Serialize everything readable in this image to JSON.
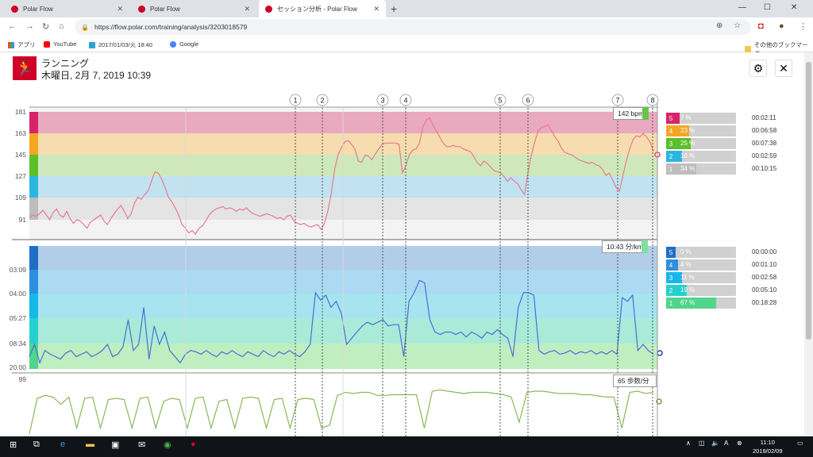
{
  "browser": {
    "tabs": [
      {
        "title": "Polar Flow",
        "active": false
      },
      {
        "title": "Polar Flow",
        "active": false
      },
      {
        "title": "セッション分析 - Polar Flow",
        "active": true
      }
    ],
    "url": "https://flow.polar.com/training/analysis/3203018579",
    "bookmarks": [
      {
        "label": "アプリ",
        "icon": "apps-grid-icon"
      },
      {
        "label": "YouTube",
        "icon": "youtube-icon"
      },
      {
        "label": "2017/01/03/火 18:40",
        "icon": "bookmark-icon"
      },
      {
        "label": "Google",
        "icon": "google-icon"
      }
    ],
    "other_bookmarks": "その他のブックマーク"
  },
  "session": {
    "sport": "ランニング",
    "date": "木曜日, 2月 7, 2019 10:39"
  },
  "chart_data": {
    "type": "line",
    "markers": [
      "1",
      "2",
      "3",
      "4",
      "5",
      "6",
      "7",
      "8"
    ],
    "panels": [
      {
        "name": "heart_rate",
        "y_ticks": [
          "181",
          "163",
          "145",
          "127",
          "109",
          "91"
        ],
        "current_value": "142 bpm",
        "color": "#e87a90",
        "values": [
          93,
          95,
          94,
          96,
          99,
          95,
          91,
          97,
          100,
          95,
          93,
          98,
          92,
          88,
          91,
          90,
          87,
          84,
          89,
          91,
          93,
          95,
          90,
          87,
          92,
          96,
          100,
          103,
          98,
          92,
          96,
          105,
          110,
          108,
          112,
          115,
          123,
          131,
          130,
          125,
          118,
          110,
          106,
          101,
          95,
          87,
          84,
          80,
          82,
          79,
          84,
          86,
          90,
          95,
          98,
          100,
          101,
          102,
          100,
          101,
          100,
          98,
          100,
          99,
          101,
          98,
          96,
          95,
          94,
          95,
          96,
          95,
          94,
          92,
          93,
          91,
          94,
          95,
          90,
          88,
          87,
          88,
          86,
          85,
          86,
          87,
          83,
          88,
          98,
          113,
          133,
          145,
          151,
          156,
          157,
          154,
          150,
          140,
          139,
          145,
          144,
          141,
          146,
          150,
          154,
          155,
          155,
          155,
          155,
          154,
          130,
          136,
          145,
          149,
          150,
          155,
          168,
          174,
          176,
          170,
          165,
          160,
          155,
          152,
          152,
          153,
          152,
          152,
          150,
          149,
          148,
          144,
          139,
          136,
          140,
          138,
          135,
          132,
          131,
          130,
          127,
          123,
          126,
          123,
          121,
          116,
          112,
          130,
          145,
          156,
          165,
          168,
          169,
          170,
          165,
          160,
          156,
          150,
          147,
          146,
          145,
          143,
          141,
          140,
          139,
          138,
          139,
          137,
          136,
          133,
          128,
          130,
          124,
          118,
          115,
          128,
          140,
          150,
          158,
          161,
          160,
          163,
          160,
          156,
          148
        ]
      },
      {
        "name": "pace",
        "y_ticks": [
          "03:09",
          "04:00",
          "05:27",
          "08:34",
          "20:00"
        ],
        "current_value": "10:43 分/km",
        "color": "#4a6fd8",
        "values": [
          0.1,
          0.2,
          0.05,
          0.15,
          0.12,
          0.1,
          0.08,
          0.13,
          0.15,
          0.1,
          0.12,
          0.14,
          0.1,
          0.12,
          0.15,
          0.2,
          0.1,
          0.12,
          0.18,
          0.4,
          0.15,
          0.2,
          0.5,
          0.08,
          0.35,
          0.2,
          0.3,
          0.15,
          0.1,
          0.05,
          0.12,
          0.15,
          0.14,
          0.12,
          0.15,
          0.12,
          0.1,
          0.14,
          0.12,
          0.15,
          0.12,
          0.1,
          0.14,
          0.12,
          0.1,
          0.15,
          0.12,
          0.1,
          0.14,
          0.12,
          0.15,
          0.12,
          0.1,
          0.14,
          0.2,
          0.62,
          0.56,
          0.6,
          0.5,
          0.55,
          0.45,
          0.2,
          0.25,
          0.3,
          0.35,
          0.38,
          0.36,
          0.38,
          0.4,
          0.35,
          0.36,
          0.36,
          0.1,
          0.55,
          0.62,
          0.72,
          0.7,
          0.4,
          0.3,
          0.28,
          0.3,
          0.3,
          0.28,
          0.3,
          0.26,
          0.3,
          0.28,
          0.25,
          0.3,
          0.28,
          0.32,
          0.28,
          0.25,
          0.1,
          0.5,
          0.62,
          0.62,
          0.6,
          0.15,
          0.12,
          0.14,
          0.15,
          0.12,
          0.13,
          0.15,
          0.12,
          0.14,
          0.13,
          0.15,
          0.12,
          0.14,
          0.12,
          0.15,
          0.12,
          0.58,
          0.55,
          0.6,
          0.15,
          0.2,
          0.15,
          0.12
        ]
      },
      {
        "name": "cadence",
        "y_ticks": [
          "99"
        ],
        "current_value": "65 歩数/分",
        "color": "#8ab85a",
        "values": [
          0,
          0.6,
          0.65,
          0.62,
          0.5,
          0.62,
          0.1,
          0.6,
          0.62,
          0.1,
          0.58,
          0.6,
          0.58,
          0.1,
          0.6,
          0.62,
          0.1,
          0.55,
          0.6,
          0.58,
          0.1,
          0.6,
          0.62,
          0.1,
          0.55,
          0.58,
          0.1,
          0.6,
          0.62,
          0.6,
          0.1,
          0.58,
          0.6,
          0.1,
          0.58,
          0.6,
          0.58,
          0.1,
          0.15,
          0.65,
          0.7,
          0.68,
          0.7,
          0.7,
          0.65,
          0.65,
          0.66,
          0.66,
          0.66,
          0.66,
          0.1,
          0.72,
          0.74,
          0.72,
          0.7,
          0.68,
          0.7,
          0.7,
          0.7,
          0.68,
          0.66,
          0.62,
          0.2,
          0.7,
          0.72,
          0.72,
          0.7,
          0.68,
          0.68,
          0.68,
          0.66,
          0.66,
          0.64,
          0.62,
          0.62,
          0.1,
          0.7,
          0.72,
          0.68,
          0.7
        ]
      }
    ]
  },
  "zones": {
    "heart_rate": [
      {
        "zone": "5",
        "percent": "7 %",
        "time": "00:02:11",
        "fill": 0.07
      },
      {
        "zone": "4",
        "percent": "23 %",
        "time": "00:06:58",
        "fill": 0.23
      },
      {
        "zone": "3",
        "percent": "25 %",
        "time": "00:07:38",
        "fill": 0.25
      },
      {
        "zone": "2",
        "percent": "10 %",
        "time": "00:02:59",
        "fill": 0.1
      },
      {
        "zone": "1",
        "percent": "34 %",
        "time": "00:10:15",
        "fill": 0.34
      }
    ],
    "pace": [
      {
        "zone": "5",
        "percent": "0 %",
        "time": "00:00:00",
        "fill": 0.0
      },
      {
        "zone": "4",
        "percent": "4 %",
        "time": "00:01:10",
        "fill": 0.04
      },
      {
        "zone": "3",
        "percent": "11 %",
        "time": "00:02:58",
        "fill": 0.11
      },
      {
        "zone": "2",
        "percent": "19 %",
        "time": "00:05:10",
        "fill": 0.19
      },
      {
        "zone": "1",
        "percent": "67 %",
        "time": "00:18:28",
        "fill": 0.67
      }
    ]
  },
  "taskbar": {
    "time": "11:10",
    "date": "2019/02/09"
  }
}
